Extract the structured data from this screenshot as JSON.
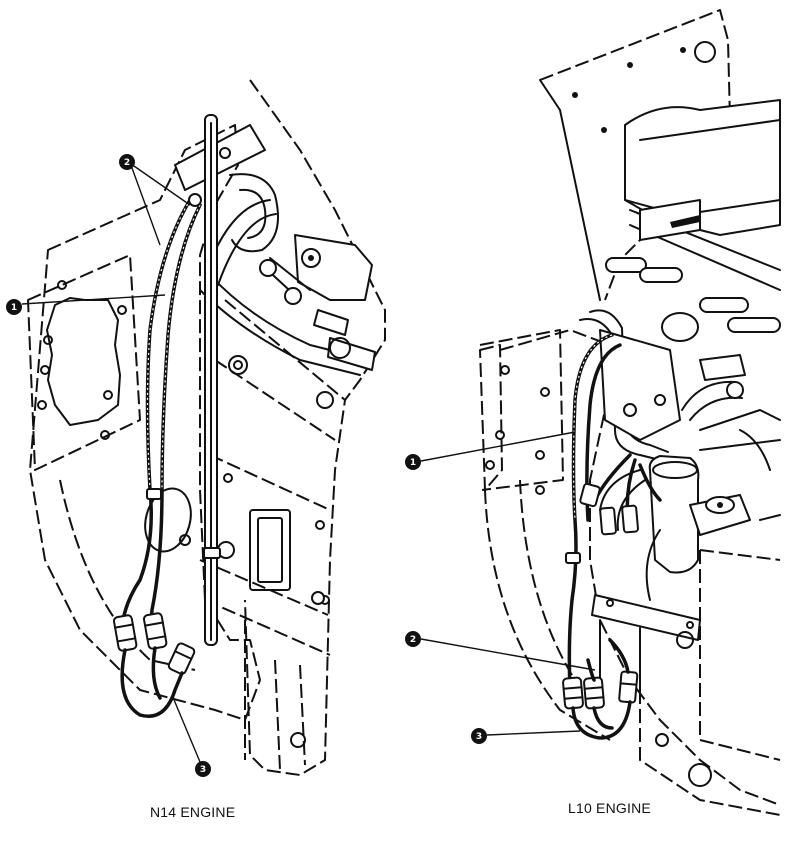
{
  "views": [
    {
      "caption": "N14 ENGINE"
    },
    {
      "caption": "L10 ENGINE"
    }
  ],
  "callouts": {
    "n14": [
      "1",
      "2",
      "3"
    ],
    "l10": [
      "1",
      "2",
      "3"
    ]
  }
}
